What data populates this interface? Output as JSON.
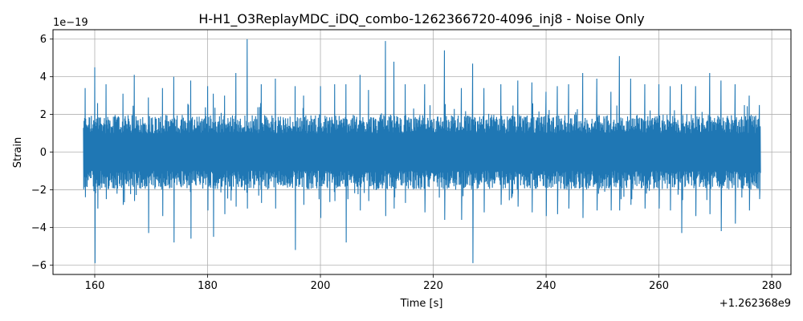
{
  "chart_data": {
    "type": "line",
    "title": "H-H1_O3ReplayMDC_iDQ_combo-1262366720-4096_inj8 - Noise Only",
    "xlabel": "Time [s]",
    "ylabel": "Strain",
    "x_offset_label": "+1.262368e9",
    "y_scale_label": "1e−19",
    "xlim": [
      152.6,
      283.4
    ],
    "ylim": [
      -6.5,
      6.5
    ],
    "x_range": [
      158.0,
      278.0
    ],
    "xticks": [
      160,
      180,
      200,
      220,
      240,
      260,
      280
    ],
    "xtick_labels": [
      "160",
      "180",
      "200",
      "220",
      "240",
      "260",
      "280"
    ],
    "yticks": [
      -6,
      -4,
      -2,
      0,
      2,
      4,
      6
    ],
    "ytick_labels": [
      "−6",
      "−4",
      "−2",
      "0",
      "2",
      "4",
      "6"
    ],
    "grid": true,
    "series": [
      {
        "color": "#1f77b4",
        "typical_amplitude": 1.8,
        "peaks": [
          [
            158.3,
            3.4,
            -2.4
          ],
          [
            160.0,
            4.5,
            -5.9
          ],
          [
            160.5,
            2.6,
            -3.0
          ],
          [
            162.0,
            3.6,
            -2.5
          ],
          [
            165.0,
            3.1,
            -2.8
          ],
          [
            167.0,
            4.1,
            -2.6
          ],
          [
            169.5,
            2.9,
            -4.3
          ],
          [
            172.0,
            3.4,
            -3.4
          ],
          [
            174.0,
            4.0,
            -4.8
          ],
          [
            177.0,
            3.8,
            -4.6
          ],
          [
            180.0,
            3.5,
            -3.1
          ],
          [
            181.0,
            3.1,
            -4.5
          ],
          [
            183.0,
            3.0,
            -3.3
          ],
          [
            185.0,
            4.2,
            -2.9
          ],
          [
            187.0,
            6.0,
            -3.0
          ],
          [
            189.5,
            3.6,
            -2.7
          ],
          [
            192.0,
            3.9,
            -3.0
          ],
          [
            195.5,
            3.5,
            -5.2
          ],
          [
            197.0,
            3.0,
            -2.8
          ],
          [
            200.0,
            3.5,
            -3.5
          ],
          [
            202.5,
            3.6,
            -2.6
          ],
          [
            204.5,
            3.6,
            -4.8
          ],
          [
            207.0,
            4.1,
            -3.1
          ],
          [
            208.5,
            3.3,
            -2.6
          ],
          [
            211.5,
            5.9,
            -3.4
          ],
          [
            213.0,
            4.8,
            -3.0
          ],
          [
            215.0,
            3.6,
            -2.7
          ],
          [
            218.5,
            3.6,
            -3.2
          ],
          [
            222.0,
            5.4,
            -3.6
          ],
          [
            225.0,
            3.4,
            -3.6
          ],
          [
            227.0,
            4.7,
            -5.9
          ],
          [
            229.0,
            3.4,
            -3.2
          ],
          [
            232.0,
            3.6,
            -2.8
          ],
          [
            235.0,
            3.8,
            -2.9
          ],
          [
            237.5,
            3.7,
            -3.2
          ],
          [
            240.0,
            3.2,
            -3.4
          ],
          [
            242.0,
            3.5,
            -3.3
          ],
          [
            244.0,
            3.6,
            -3.0
          ],
          [
            246.5,
            4.2,
            -3.5
          ],
          [
            249.0,
            3.9,
            -3.1
          ],
          [
            251.5,
            3.2,
            -3.1
          ],
          [
            253.0,
            5.1,
            -3.1
          ],
          [
            255.0,
            3.9,
            -2.8
          ],
          [
            257.5,
            3.6,
            -3.0
          ],
          [
            260.0,
            3.6,
            -3.0
          ],
          [
            262.0,
            3.5,
            -3.1
          ],
          [
            264.0,
            3.6,
            -4.3
          ],
          [
            266.5,
            3.5,
            -3.4
          ],
          [
            269.0,
            4.2,
            -3.3
          ],
          [
            271.0,
            3.8,
            -4.2
          ],
          [
            273.5,
            3.6,
            -3.8
          ],
          [
            276.0,
            3.0,
            -3.1
          ],
          [
            277.8,
            2.5,
            -2.5
          ]
        ]
      }
    ]
  }
}
